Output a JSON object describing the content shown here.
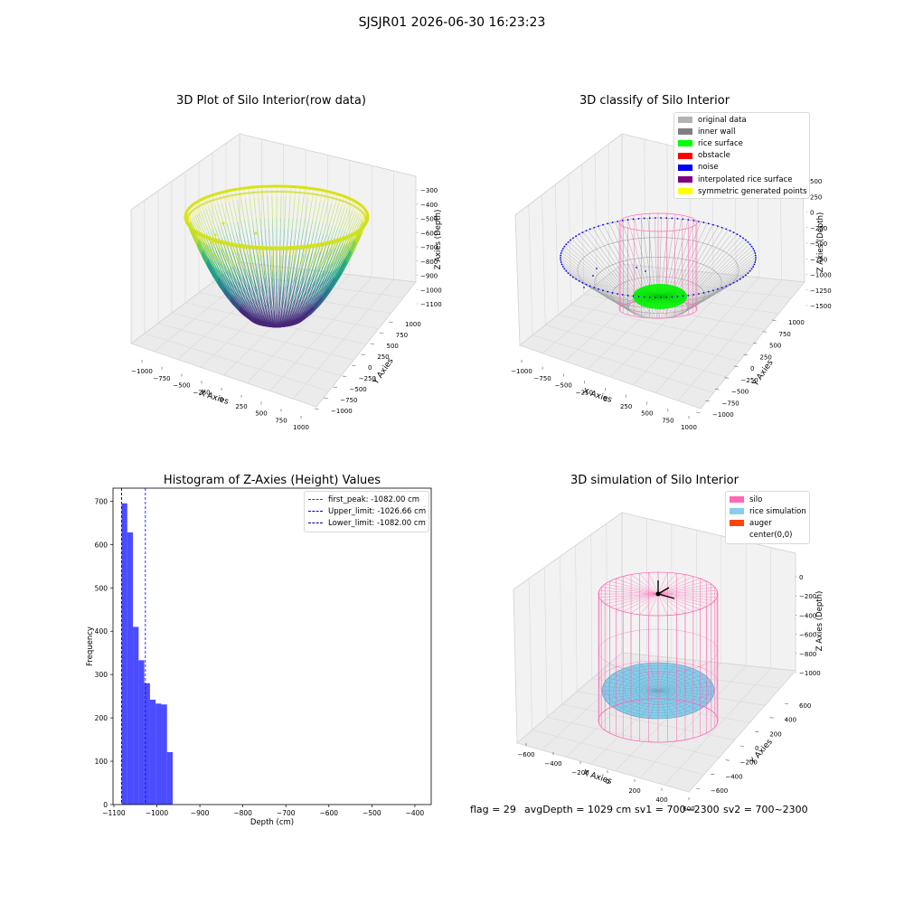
{
  "figure": {
    "suptitle": "SJSJR01 2026-06-30 16:23:23",
    "status": {
      "flag": "flag = 29",
      "avg_depth": "avgDepth = 1029 cm",
      "sv1": "sv1 = 700~2300",
      "sv2": "sv2 = 700~2300"
    }
  },
  "panels": {
    "raw": {
      "title": "3D Plot of Silo Interior(row data)",
      "xlabel": "X Axies",
      "ylabel": "Y Axies",
      "zlabel": "Z Axies (Depth)",
      "xticks": [
        "−1000",
        "−750",
        "−500",
        "−250",
        "0",
        "250",
        "500",
        "750",
        "1000"
      ],
      "yticks": [
        "1000",
        "750",
        "500",
        "250",
        "0",
        "−250",
        "−500",
        "−750",
        "−1000"
      ],
      "zticks": [
        "−300",
        "−400",
        "−500",
        "−600",
        "−700",
        "−800",
        "−900",
        "−1000",
        "−1100"
      ]
    },
    "classify": {
      "title": "3D classify of Silo Interior",
      "xlabel": "X Axies",
      "ylabel": "Y Axies",
      "zlabel": "Z Axies (Depth)",
      "xticks": [
        "−1000",
        "−750",
        "−500",
        "−250",
        "0",
        "250",
        "500",
        "750",
        "1000"
      ],
      "yticks": [
        "1000",
        "750",
        "500",
        "250",
        "0",
        "−250",
        "−500",
        "−750",
        "−1000"
      ],
      "zticks": [
        "500",
        "250",
        "0",
        "−250",
        "−500",
        "−750",
        "−1000",
        "−1250",
        "−1500"
      ],
      "legend": [
        {
          "label": "original data",
          "color": "#b3b3b3"
        },
        {
          "label": "inner wall",
          "color": "#808080"
        },
        {
          "label": "rice surface",
          "color": "#00ff00"
        },
        {
          "label": "obstacle",
          "color": "#ff0000"
        },
        {
          "label": "noise",
          "color": "#0000ff"
        },
        {
          "label": "interpolated rice surface",
          "color": "#800080"
        },
        {
          "label": "symmetric generated points",
          "color": "#ffff00"
        }
      ]
    },
    "simulation": {
      "title": "3D simulation of Silo Interior",
      "xlabel": "X Axies",
      "ylabel": "Y Axies",
      "zlabel": "Z Axies (Depth)",
      "xticks": [
        "−600",
        "−400",
        "−200",
        "0",
        "200",
        "400",
        "600"
      ],
      "yticks": [
        "600",
        "400",
        "200",
        "0",
        "−200",
        "−400",
        "−600"
      ],
      "zticks": [
        "0",
        "−200",
        "−400",
        "−600",
        "−800",
        "−1000"
      ],
      "legend": [
        {
          "label": "silo",
          "color": "#ff69b4"
        },
        {
          "label": "rice simulation",
          "color": "#87ceeb"
        },
        {
          "label": "auger",
          "color": "#ff4500"
        },
        {
          "label": "center(0,0)",
          "color": ""
        }
      ]
    }
  },
  "chart_data": {
    "type": "bar",
    "title": "Histogram of Z-Axies (Height) Values",
    "xlabel": "Depth (cm)",
    "ylabel": "Frequency",
    "xlim": [
      -1102,
      -362
    ],
    "ylim": [
      0,
      730
    ],
    "xticks": [
      -1100,
      -1000,
      -900,
      -800,
      -700,
      -600,
      -500,
      -400
    ],
    "xtick_labels": [
      "−1100",
      "−1000",
      "−900",
      "−800",
      "−700",
      "−600",
      "−500",
      "−400"
    ],
    "yticks": [
      0,
      100,
      200,
      300,
      400,
      500,
      600,
      700
    ],
    "bar_color": "#0000ff",
    "bar_alpha": 0.7,
    "bins": [
      {
        "x0": -1082.0,
        "x1": -1068.8,
        "value": 695
      },
      {
        "x0": -1068.8,
        "x1": -1055.6,
        "value": 628
      },
      {
        "x0": -1055.6,
        "x1": -1042.4,
        "value": 410
      },
      {
        "x0": -1042.4,
        "x1": -1029.2,
        "value": 333
      },
      {
        "x0": -1029.2,
        "x1": -1016.0,
        "value": 280
      },
      {
        "x0": -1016.0,
        "x1": -1002.8,
        "value": 242
      },
      {
        "x0": -1002.8,
        "x1": -989.6,
        "value": 233
      },
      {
        "x0": -989.6,
        "x1": -976.4,
        "value": 231
      },
      {
        "x0": -976.4,
        "x1": -963.2,
        "value": 121
      }
    ],
    "vlines": [
      {
        "x": -1082.0,
        "color": "#ff0000",
        "label": "first_peak: -1082.00 cm"
      },
      {
        "x": -1026.66,
        "color": "#0000ff",
        "label": "Upper_limit: -1026.66 cm"
      },
      {
        "x": -1082.0,
        "color": "#00008b",
        "label": "Lower_limit: -1082.00 cm"
      }
    ],
    "grid": false,
    "legend_position": "top-right"
  }
}
